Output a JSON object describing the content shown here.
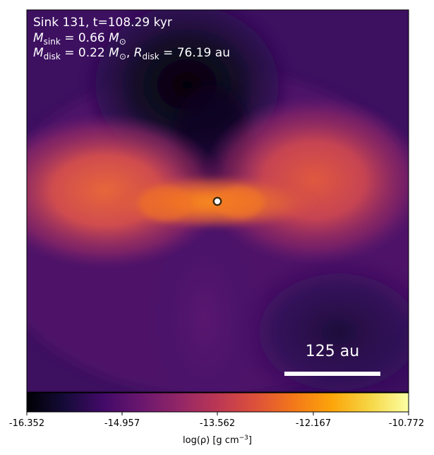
{
  "annotation": {
    "line1": "Sink 131, t=108.29 kyr",
    "line2_sym": "M",
    "line2_sub": "sink",
    "line2_val": " = 0.66 ",
    "line2_unit": "M",
    "line2_unit_sub": "⊙",
    "line3_sym": "M",
    "line3_sub": "disk",
    "line3_val": " = 0.22 ",
    "line3_unit": "M",
    "line3_unit_sub": "⊙",
    "line3_sep": ", ",
    "line3_sym2": "R",
    "line3_sub2": "disk",
    "line3_val2": " = 76.19 au"
  },
  "scale_bar": {
    "label": "125 au",
    "length_au": 125
  },
  "colorbar": {
    "ticks": [
      "-16.352",
      "-14.957",
      "-13.562",
      "-12.167",
      "-10.772"
    ],
    "label_prefix": "log(ρ) [g cm",
    "label_exp": "−3",
    "label_suffix": "]",
    "colormap": "inferno"
  },
  "colors": {
    "text_on_image": "#ffffff",
    "sink_marker_edge": "#3a2a10",
    "sink_marker_fill": "#ffffff"
  }
}
